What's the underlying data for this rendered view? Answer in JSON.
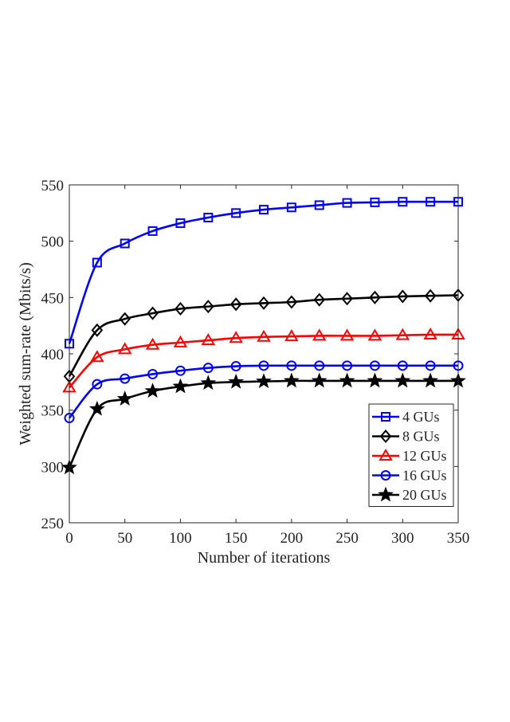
{
  "chart_data": {
    "type": "line",
    "title": "",
    "xlabel": "Number of iterations",
    "ylabel": "Weighted sum-rate (Mbits/s)",
    "xlim": [
      0,
      350
    ],
    "ylim": [
      250,
      550
    ],
    "xticks": [
      0,
      50,
      100,
      150,
      200,
      250,
      300,
      350
    ],
    "yticks": [
      250,
      300,
      350,
      400,
      450,
      500,
      550
    ],
    "grid": false,
    "legend_position": "bottom-right",
    "x": [
      0,
      25,
      50,
      75,
      100,
      125,
      150,
      175,
      200,
      225,
      250,
      275,
      300,
      325,
      350
    ],
    "series": [
      {
        "name": "4 GUs",
        "color": "#0000ff",
        "marker": "square",
        "values": [
          409,
          481,
          498,
          509,
          516,
          521,
          525,
          528,
          530,
          532,
          534,
          534.5,
          535,
          535,
          535
        ]
      },
      {
        "name": "8 GUs",
        "color": "#000000",
        "marker": "diamond",
        "values": [
          380,
          421,
          431,
          436,
          440,
          442,
          444,
          445,
          446,
          448,
          449,
          450,
          451,
          451.5,
          452
        ]
      },
      {
        "name": "12 GUs",
        "color": "#ff0000",
        "marker": "triangle",
        "values": [
          370,
          397,
          404,
          408,
          410,
          412,
          414,
          415,
          415.5,
          416,
          416,
          416,
          416.5,
          417,
          417
        ]
      },
      {
        "name": "16 GUs",
        "color": "#0000ff",
        "marker": "circle",
        "values": [
          343,
          373,
          378,
          382,
          385,
          387.5,
          389,
          389.5,
          389.5,
          389.5,
          389.5,
          389.5,
          389.5,
          389.5,
          389.5
        ]
      },
      {
        "name": "20 GUs",
        "color": "#000000",
        "marker": "star",
        "values": [
          299,
          351,
          360,
          367,
          371,
          374,
          375,
          375.5,
          376,
          376,
          376,
          376,
          376,
          376,
          376
        ]
      }
    ]
  }
}
